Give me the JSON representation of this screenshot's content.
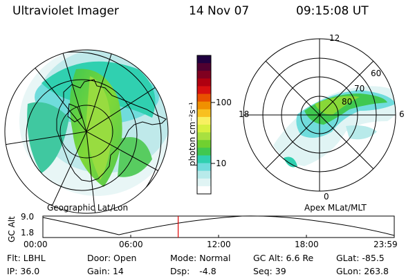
{
  "header": {
    "instrument": "Ultraviolet Imager",
    "date": "14 Nov 07",
    "time": "09:15:08 UT"
  },
  "colorbar": {
    "unit_label": "photon cm⁻²s⁻¹",
    "tick_100": "100",
    "tick_10": "10",
    "colors": [
      "#ffffff",
      "#e0f4f4",
      "#b8eaea",
      "#70dcdc",
      "#30d0b0",
      "#40c850",
      "#70d030",
      "#a8e040",
      "#d8f040",
      "#f8f060",
      "#f8c020",
      "#f09000",
      "#e85000",
      "#d81010",
      "#b00010",
      "#800020",
      "#500030",
      "#200040"
    ]
  },
  "left_panel": {
    "label": "Geographic Lat/Lon"
  },
  "right_panel": {
    "label": "Apex MLat/MLT",
    "mlt_12": "12",
    "mlt_18": "18",
    "mlt_6": "6",
    "mlt_0": "0",
    "lat_60": "60",
    "lat_70": "70",
    "lat_80": "80"
  },
  "timeline": {
    "axis_label": "GC Alt",
    "y_max": "9.0",
    "y_min": "1.8",
    "ticks": [
      "00:00",
      "06:00",
      "12:00",
      "18:00",
      "23:59"
    ],
    "current_fraction": 0.385
  },
  "info": {
    "flt_label": "Flt:",
    "flt_value": "LBHL",
    "ip_label": "IP:",
    "ip_value": "36.0",
    "door_label": "Door:",
    "door_value": "Open",
    "gain_label": "Gain:",
    "gain_value": "14",
    "mode_label": "Mode:",
    "mode_value": "Normal",
    "dsp_label": "Dsp:",
    "dsp_value": "-4.8",
    "gcalt_label": "GC Alt:",
    "gcalt_value": "6.6 Re",
    "seq_label": "Seq:",
    "seq_value": "39",
    "glat_label": "GLat:",
    "glat_value": "-85.5",
    "glon_label": "GLon:",
    "glon_value": "263.8"
  }
}
